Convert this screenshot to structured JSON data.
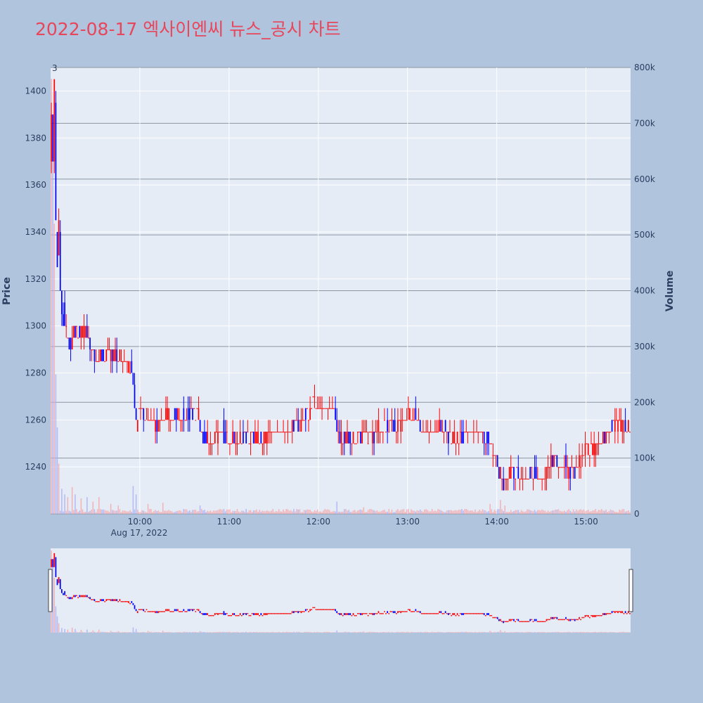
{
  "chart_data": {
    "type": "candlestick",
    "title": "2022-08-17 엑사이엔씨 뉴스_공시 차트",
    "date_label": "Aug 17, 2022",
    "ylabel": "Price",
    "y2label": "Volume",
    "annotation": "3",
    "colors": {
      "up": "#ff0000",
      "down": "#0000ff",
      "vol_up": "#f4a8ad",
      "vol_down": "#aab2f4",
      "plot_bg": "#e5ecf6",
      "page_bg": "#b0c4de",
      "title": "#e8465a"
    },
    "x_range": [
      "09:00",
      "15:30"
    ],
    "x_ticks": [
      "10:00",
      "11:00",
      "12:00",
      "13:00",
      "14:00",
      "15:00"
    ],
    "ylim": [
      1220,
      1410
    ],
    "y_ticks": [
      1240,
      1260,
      1280,
      1300,
      1320,
      1340,
      1360,
      1380,
      1400
    ],
    "y2lim": [
      0,
      800000
    ],
    "y2_ticks": [
      0,
      100000,
      200000,
      300000,
      400000,
      500000,
      600000,
      700000,
      800000
    ],
    "y2_tick_labels": [
      "0",
      "100k",
      "200k",
      "300k",
      "400k",
      "500k",
      "600k",
      "700k",
      "800k"
    ],
    "price_path": [
      [
        "09:00",
        1370
      ],
      [
        "09:01",
        1390
      ],
      [
        "09:02",
        1375
      ],
      [
        "09:03",
        1400
      ],
      [
        "09:04",
        1345
      ],
      [
        "09:05",
        1330
      ],
      [
        "09:06",
        1340
      ],
      [
        "09:07",
        1320
      ],
      [
        "09:08",
        1305
      ],
      [
        "09:10",
        1300
      ],
      [
        "09:12",
        1295
      ],
      [
        "09:14",
        1290
      ],
      [
        "09:16",
        1300
      ],
      [
        "09:20",
        1295
      ],
      [
        "09:24",
        1300
      ],
      [
        "09:28",
        1290
      ],
      [
        "09:30",
        1285
      ],
      [
        "09:40",
        1288
      ],
      [
        "09:50",
        1286
      ],
      [
        "09:55",
        1280
      ],
      [
        "09:57",
        1265
      ],
      [
        "09:58",
        1258
      ],
      [
        "10:00",
        1265
      ],
      [
        "10:05",
        1262
      ],
      [
        "10:10",
        1258
      ],
      [
        "10:20",
        1262
      ],
      [
        "10:30",
        1260
      ],
      [
        "10:35",
        1265
      ],
      [
        "10:40",
        1262
      ],
      [
        "10:42",
        1255
      ],
      [
        "10:45",
        1250
      ],
      [
        "10:50",
        1252
      ],
      [
        "10:55",
        1256
      ],
      [
        "11:00",
        1252
      ],
      [
        "11:10",
        1252
      ],
      [
        "11:20",
        1252
      ],
      [
        "11:30",
        1255
      ],
      [
        "11:40",
        1255
      ],
      [
        "11:45",
        1258
      ],
      [
        "11:50",
        1260
      ],
      [
        "11:55",
        1265
      ],
      [
        "11:57",
        1268
      ],
      [
        "12:00",
        1265
      ],
      [
        "12:10",
        1265
      ],
      [
        "12:12",
        1258
      ],
      [
        "12:15",
        1252
      ],
      [
        "12:20",
        1252
      ],
      [
        "12:30",
        1252
      ],
      [
        "12:40",
        1255
      ],
      [
        "12:45",
        1258
      ],
      [
        "12:55",
        1258
      ],
      [
        "13:00",
        1262
      ],
      [
        "13:05",
        1262
      ],
      [
        "13:10",
        1255
      ],
      [
        "13:20",
        1255
      ],
      [
        "13:25",
        1257
      ],
      [
        "13:30",
        1252
      ],
      [
        "13:40",
        1255
      ],
      [
        "13:50",
        1255
      ],
      [
        "13:55",
        1250
      ],
      [
        "13:58",
        1245
      ],
      [
        "14:00",
        1245
      ],
      [
        "14:02",
        1238
      ],
      [
        "14:05",
        1233
      ],
      [
        "14:10",
        1238
      ],
      [
        "14:15",
        1236
      ],
      [
        "14:20",
        1235
      ],
      [
        "14:25",
        1238
      ],
      [
        "14:30",
        1235
      ],
      [
        "14:35",
        1240
      ],
      [
        "14:40",
        1243
      ],
      [
        "14:45",
        1241
      ],
      [
        "14:50",
        1238
      ],
      [
        "14:55",
        1240
      ],
      [
        "15:00",
        1247
      ],
      [
        "15:05",
        1248
      ],
      [
        "15:10",
        1250
      ],
      [
        "15:15",
        1255
      ],
      [
        "15:20",
        1258
      ],
      [
        "15:23",
        1258
      ],
      [
        "15:30",
        1255
      ]
    ],
    "volume_spikes": [
      [
        "09:00",
        780000
      ],
      [
        "09:01",
        700000
      ],
      [
        "09:02",
        520000
      ],
      [
        "09:03",
        250000
      ],
      [
        "09:04",
        155000
      ],
      [
        "09:05",
        90000
      ],
      [
        "09:07",
        45000
      ],
      [
        "09:09",
        35000
      ],
      [
        "09:11",
        30000
      ],
      [
        "09:14",
        48000
      ],
      [
        "09:16",
        35000
      ],
      [
        "09:20",
        28000
      ],
      [
        "09:24",
        30000
      ],
      [
        "09:28",
        22000
      ],
      [
        "09:32",
        30000
      ],
      [
        "09:40",
        18000
      ],
      [
        "09:45",
        15000
      ],
      [
        "09:55",
        50000
      ],
      [
        "09:57",
        35000
      ],
      [
        "10:05",
        18000
      ],
      [
        "10:15",
        20000
      ],
      [
        "10:40",
        15000
      ],
      [
        "11:00",
        8000
      ],
      [
        "12:12",
        22000
      ],
      [
        "12:30",
        12000
      ],
      [
        "13:55",
        18000
      ],
      [
        "14:02",
        25000
      ],
      [
        "14:05",
        15000
      ],
      [
        "14:20",
        8000
      ],
      [
        "15:30",
        45000
      ]
    ]
  }
}
